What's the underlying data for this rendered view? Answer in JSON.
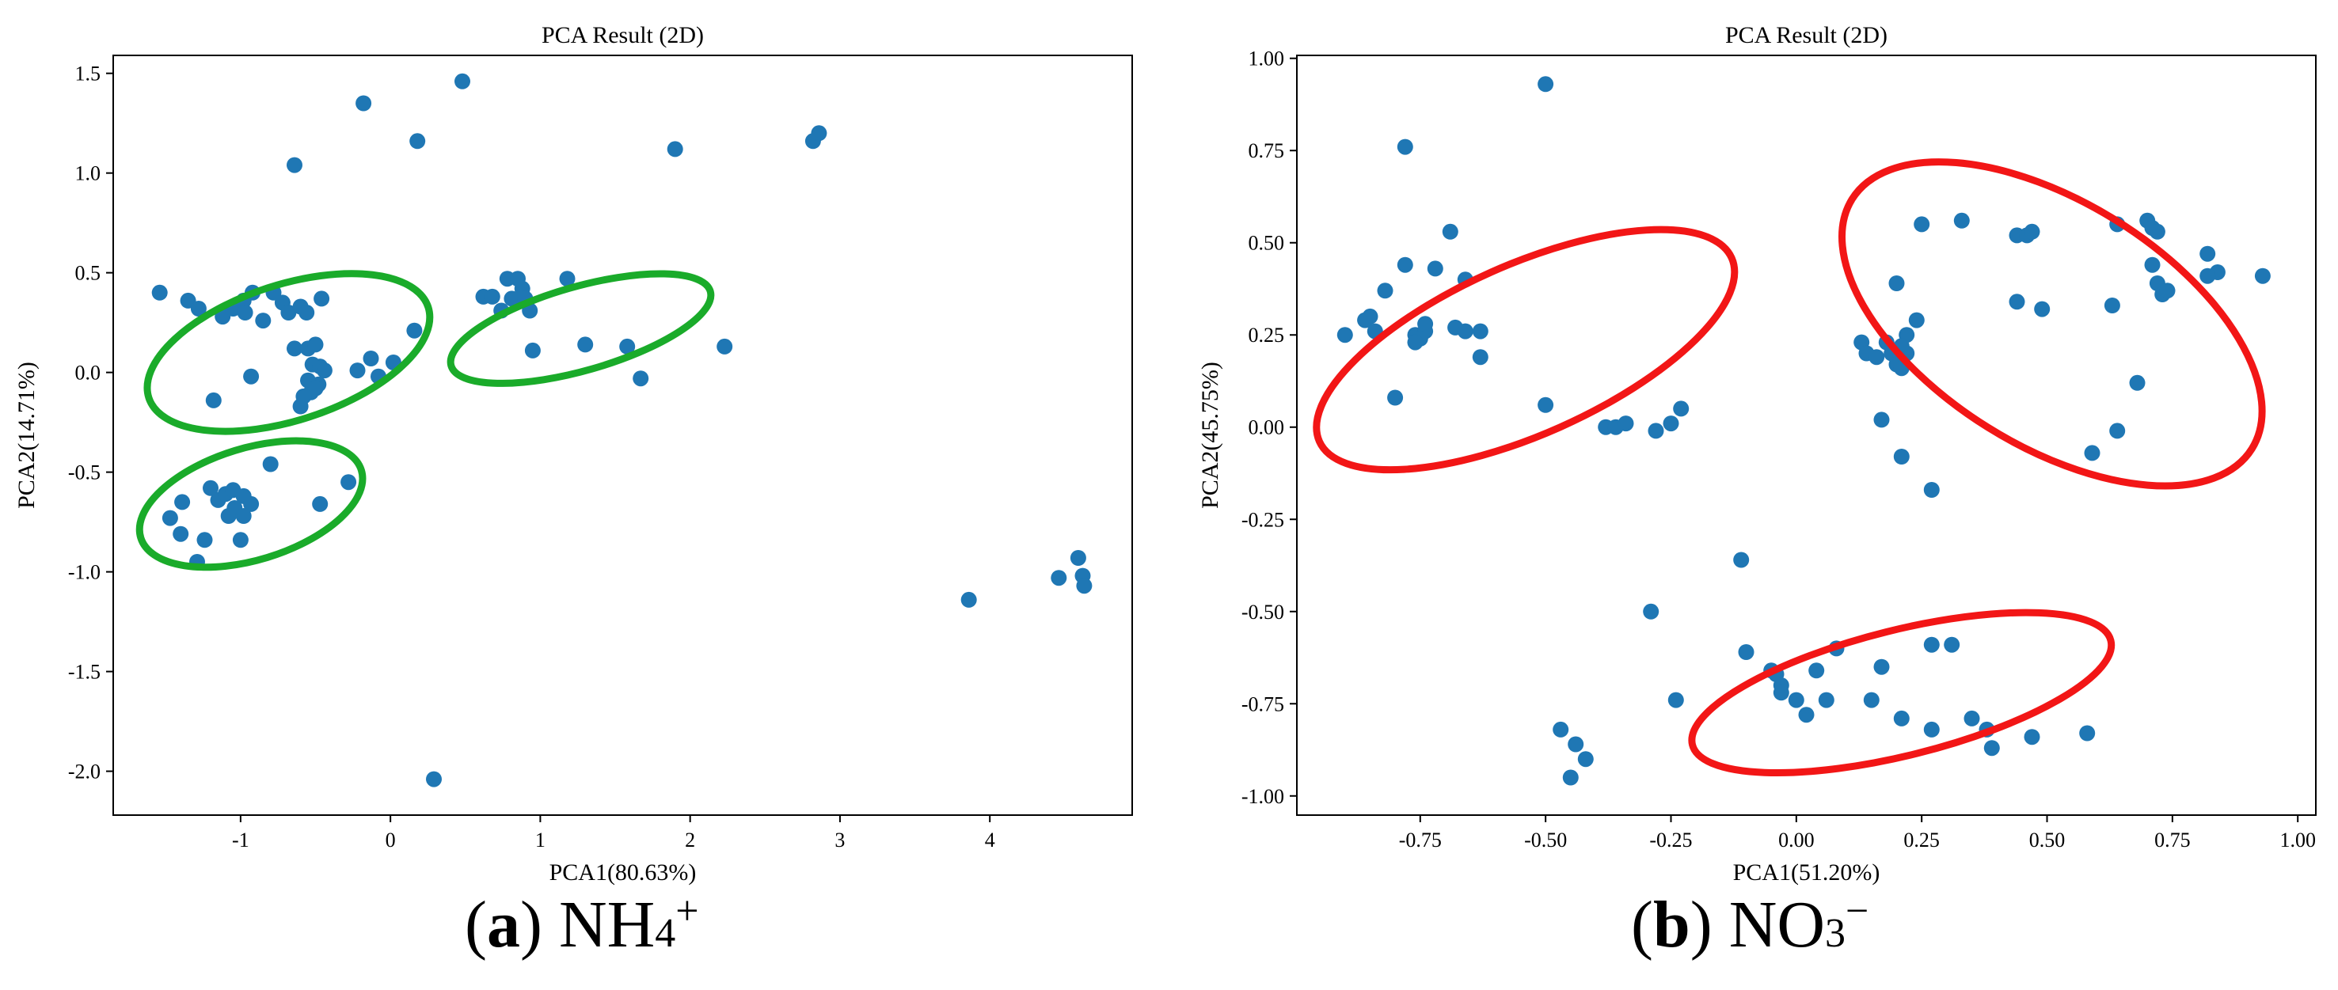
{
  "colors": {
    "point": "#1f77b4",
    "ellipse_a": "#1aab2a",
    "ellipse_b": "#f21616",
    "axis": "#000000",
    "background": "#ffffff"
  },
  "captions": [
    {
      "letter": "a",
      "open": "(",
      "close": ")",
      "ion_base": "NH",
      "ion_sub": "4",
      "ion_sup": "+"
    },
    {
      "letter": "b",
      "open": "(",
      "close": ")",
      "ion_base": "NO",
      "ion_sub": "3",
      "ion_sup": "−"
    }
  ],
  "chart_data": [
    {
      "type": "scatter",
      "panel": "a",
      "title": "PCA Result (2D)",
      "xlabel": "PCA1(80.63%)",
      "ylabel": "PCA2(14.71%)",
      "xlim": [
        -1.85,
        4.95
      ],
      "ylim": [
        -2.22,
        1.59
      ],
      "xticks": [
        -1,
        0,
        1,
        2,
        3,
        4
      ],
      "xtick_labels": [
        "-1",
        "0",
        "1",
        "2",
        "3",
        "4"
      ],
      "yticks": [
        1.5,
        1.0,
        0.5,
        0.0,
        -0.5,
        -1.0,
        -1.5,
        -2.0
      ],
      "ytick_labels": [
        "1.5",
        "1.0",
        "0.5",
        "0.0",
        "-0.5",
        "-1.0",
        "-1.5",
        "-2.0"
      ],
      "points": [
        [
          0.48,
          1.46
        ],
        [
          -0.18,
          1.35
        ],
        [
          0.18,
          1.16
        ],
        [
          -0.64,
          1.04
        ],
        [
          1.9,
          1.12
        ],
        [
          2.82,
          1.16
        ],
        [
          2.86,
          1.2
        ],
        [
          -1.54,
          0.4
        ],
        [
          -1.35,
          0.36
        ],
        [
          -1.28,
          0.32
        ],
        [
          -1.12,
          0.28
        ],
        [
          -1.05,
          0.32
        ],
        [
          -0.98,
          0.36
        ],
        [
          -0.92,
          0.4
        ],
        [
          -0.97,
          0.3
        ],
        [
          -0.85,
          0.26
        ],
        [
          -0.78,
          0.4
        ],
        [
          -0.72,
          0.35
        ],
        [
          -0.68,
          0.3
        ],
        [
          -0.6,
          0.33
        ],
        [
          -0.56,
          0.3
        ],
        [
          -0.46,
          0.37
        ],
        [
          -0.64,
          0.12
        ],
        [
          -0.55,
          0.12
        ],
        [
          -0.5,
          0.14
        ],
        [
          -0.52,
          0.04
        ],
        [
          -0.47,
          0.03
        ],
        [
          -0.44,
          0.01
        ],
        [
          -0.55,
          -0.04
        ],
        [
          -0.48,
          -0.06
        ],
        [
          -0.53,
          -0.1
        ],
        [
          -0.6,
          -0.17
        ],
        [
          -0.5,
          -0.08
        ],
        [
          -0.58,
          -0.12
        ],
        [
          -0.22,
          0.01
        ],
        [
          -0.13,
          0.07
        ],
        [
          -0.08,
          -0.02
        ],
        [
          0.02,
          0.05
        ],
        [
          0.16,
          0.21
        ],
        [
          -0.93,
          -0.02
        ],
        [
          -1.18,
          -0.14
        ],
        [
          0.62,
          0.38
        ],
        [
          0.68,
          0.38
        ],
        [
          0.74,
          0.31
        ],
        [
          0.78,
          0.47
        ],
        [
          0.85,
          0.47
        ],
        [
          0.88,
          0.42
        ],
        [
          0.81,
          0.37
        ],
        [
          0.9,
          0.37
        ],
        [
          0.93,
          0.31
        ],
        [
          1.18,
          0.47
        ],
        [
          0.95,
          0.11
        ],
        [
          1.3,
          0.14
        ],
        [
          1.58,
          0.13
        ],
        [
          1.67,
          -0.03
        ],
        [
          2.23,
          0.13
        ],
        [
          -1.47,
          -0.73
        ],
        [
          -1.39,
          -0.65
        ],
        [
          -1.4,
          -0.81
        ],
        [
          -1.24,
          -0.84
        ],
        [
          -1.29,
          -0.95
        ],
        [
          -1.2,
          -0.58
        ],
        [
          -1.15,
          -0.64
        ],
        [
          -1.1,
          -0.61
        ],
        [
          -1.05,
          -0.59
        ],
        [
          -1.04,
          -0.68
        ],
        [
          -0.98,
          -0.62
        ],
        [
          -0.93,
          -0.66
        ],
        [
          -1.08,
          -0.72
        ],
        [
          -0.98,
          -0.72
        ],
        [
          -1.0,
          -0.84
        ],
        [
          -0.8,
          -0.46
        ],
        [
          -0.47,
          -0.66
        ],
        [
          -0.28,
          -0.55
        ],
        [
          3.86,
          -1.14
        ],
        [
          4.46,
          -1.03
        ],
        [
          4.59,
          -0.93
        ],
        [
          4.62,
          -1.02
        ],
        [
          4.63,
          -1.07
        ],
        [
          0.29,
          -2.04
        ]
      ],
      "clusters": [
        {
          "cx": -0.68,
          "cy": 0.1,
          "rx": 0.98,
          "ry": 0.34,
          "angle_deg": -18
        },
        {
          "cx": 1.27,
          "cy": 0.22,
          "rx": 0.9,
          "ry": 0.21,
          "angle_deg": -16
        },
        {
          "cx": -0.93,
          "cy": -0.66,
          "rx": 0.77,
          "ry": 0.28,
          "angle_deg": -17
        }
      ]
    },
    {
      "type": "scatter",
      "panel": "b",
      "title": "PCA Result (2D)",
      "xlabel": "PCA1(51.20%)",
      "ylabel": "PCA2(45.75%)",
      "xlim": [
        -0.996,
        1.036
      ],
      "ylim": [
        -1.052,
        1.008
      ],
      "xticks": [
        -0.75,
        -0.5,
        -0.25,
        0.0,
        0.25,
        0.5,
        0.75,
        1.0
      ],
      "xtick_labels": [
        "-0.75",
        "-0.50",
        "-0.25",
        "0.00",
        "0.25",
        "0.50",
        "0.75",
        "1.00"
      ],
      "yticks": [
        1.0,
        0.75,
        0.5,
        0.25,
        0.0,
        -0.25,
        -0.5,
        -0.75,
        -1.0
      ],
      "ytick_labels": [
        "1.00",
        "0.75",
        "0.50",
        "0.25",
        "0.00",
        "-0.25",
        "-0.50",
        "-0.75",
        "-1.00"
      ],
      "points": [
        [
          -0.5,
          0.93
        ],
        [
          -0.78,
          0.76
        ],
        [
          -0.69,
          0.53
        ],
        [
          -0.78,
          0.44
        ],
        [
          -0.72,
          0.43
        ],
        [
          -0.66,
          0.4
        ],
        [
          -0.82,
          0.37
        ],
        [
          -0.85,
          0.3
        ],
        [
          -0.86,
          0.29
        ],
        [
          -0.84,
          0.26
        ],
        [
          -0.9,
          0.25
        ],
        [
          -0.76,
          0.25
        ],
        [
          -0.74,
          0.26
        ],
        [
          -0.74,
          0.28
        ],
        [
          -0.75,
          0.24
        ],
        [
          -0.76,
          0.23
        ],
        [
          -0.68,
          0.27
        ],
        [
          -0.66,
          0.26
        ],
        [
          -0.63,
          0.26
        ],
        [
          -0.63,
          0.19
        ],
        [
          -0.8,
          0.08
        ],
        [
          -0.5,
          0.06
        ],
        [
          -0.38,
          0.0
        ],
        [
          -0.36,
          0.0
        ],
        [
          -0.34,
          0.01
        ],
        [
          -0.28,
          -0.01
        ],
        [
          -0.25,
          0.01
        ],
        [
          -0.23,
          0.05
        ],
        [
          0.25,
          0.55
        ],
        [
          0.33,
          0.56
        ],
        [
          0.44,
          0.52
        ],
        [
          0.46,
          0.52
        ],
        [
          0.47,
          0.53
        ],
        [
          0.64,
          0.55
        ],
        [
          0.7,
          0.56
        ],
        [
          0.71,
          0.54
        ],
        [
          0.72,
          0.53
        ],
        [
          0.71,
          0.44
        ],
        [
          0.72,
          0.39
        ],
        [
          0.73,
          0.36
        ],
        [
          0.74,
          0.37
        ],
        [
          0.82,
          0.47
        ],
        [
          0.84,
          0.42
        ],
        [
          0.82,
          0.41
        ],
        [
          0.93,
          0.41
        ],
        [
          0.44,
          0.34
        ],
        [
          0.49,
          0.32
        ],
        [
          0.63,
          0.33
        ],
        [
          0.2,
          0.39
        ],
        [
          0.24,
          0.29
        ],
        [
          0.22,
          0.25
        ],
        [
          0.18,
          0.23
        ],
        [
          0.21,
          0.22
        ],
        [
          0.19,
          0.2
        ],
        [
          0.2,
          0.17
        ],
        [
          0.21,
          0.16
        ],
        [
          0.13,
          0.23
        ],
        [
          0.14,
          0.2
        ],
        [
          0.16,
          0.19
        ],
        [
          0.22,
          0.2
        ],
        [
          0.17,
          0.02
        ],
        [
          0.21,
          -0.08
        ],
        [
          0.27,
          -0.17
        ],
        [
          0.59,
          -0.07
        ],
        [
          0.64,
          -0.01
        ],
        [
          0.68,
          0.12
        ],
        [
          -0.11,
          -0.36
        ],
        [
          -0.29,
          -0.5
        ],
        [
          -0.24,
          -0.74
        ],
        [
          -0.47,
          -0.82
        ],
        [
          -0.44,
          -0.86
        ],
        [
          -0.42,
          -0.9
        ],
        [
          -0.45,
          -0.95
        ],
        [
          -0.1,
          -0.61
        ],
        [
          -0.05,
          -0.66
        ],
        [
          -0.04,
          -0.67
        ],
        [
          -0.03,
          -0.7
        ],
        [
          -0.03,
          -0.72
        ],
        [
          0.0,
          -0.74
        ],
        [
          0.02,
          -0.78
        ],
        [
          0.04,
          -0.66
        ],
        [
          0.06,
          -0.74
        ],
        [
          0.08,
          -0.6
        ],
        [
          0.15,
          -0.74
        ],
        [
          0.17,
          -0.65
        ],
        [
          0.21,
          -0.79
        ],
        [
          0.27,
          -0.59
        ],
        [
          0.31,
          -0.59
        ],
        [
          0.27,
          -0.82
        ],
        [
          0.35,
          -0.79
        ],
        [
          0.38,
          -0.82
        ],
        [
          0.39,
          -0.87
        ],
        [
          0.47,
          -0.84
        ],
        [
          0.58,
          -0.83
        ]
      ],
      "clusters": [
        {
          "cx": -0.54,
          "cy": 0.21,
          "rx": 0.45,
          "ry": 0.23,
          "angle_deg": -24
        },
        {
          "cx": 0.51,
          "cy": 0.28,
          "rx": 0.47,
          "ry": 0.33,
          "angle_deg": 32
        },
        {
          "cx": 0.21,
          "cy": -0.72,
          "rx": 0.43,
          "ry": 0.17,
          "angle_deg": -14
        }
      ]
    }
  ]
}
